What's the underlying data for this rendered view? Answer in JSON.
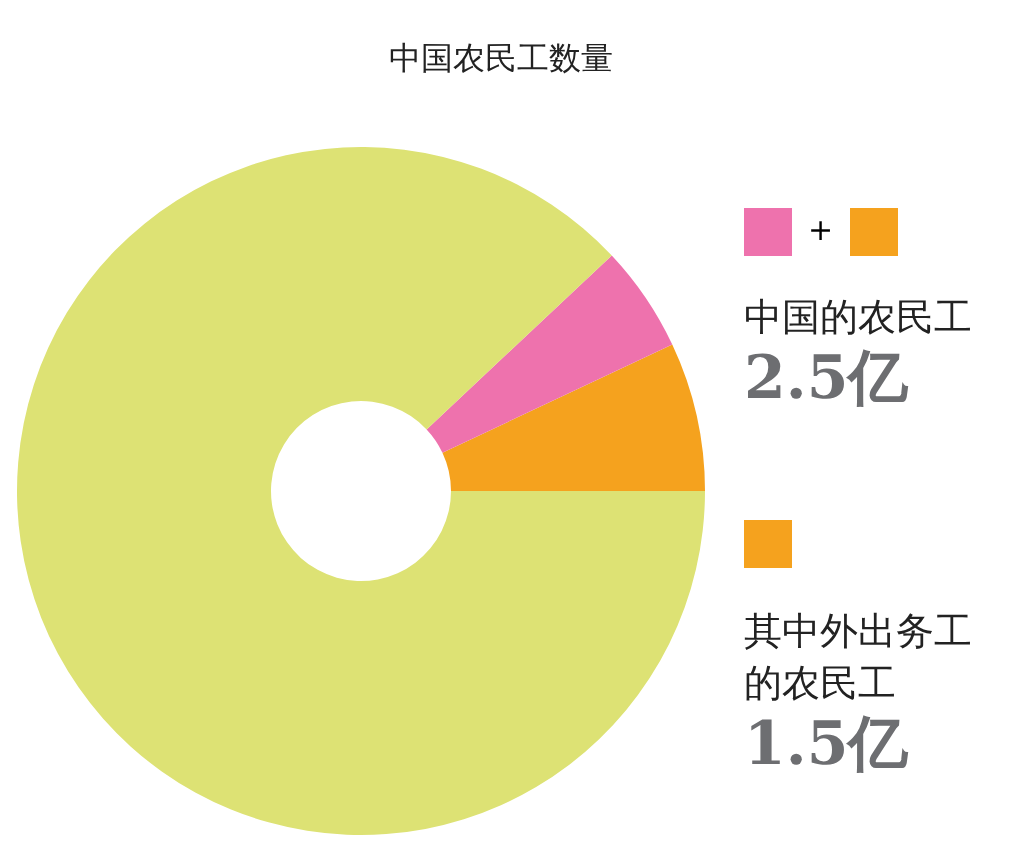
{
  "chart_data": {
    "type": "donut",
    "title": "中国农民工数量",
    "categories": [
      null,
      null,
      null
    ],
    "values": [
      7,
      5,
      88
    ],
    "colors": [
      "#f5a21e",
      "#ee72ad",
      "#dde274"
    ],
    "annotations": [
      "+",
      "中国的农民工",
      "2.5亿",
      "其中外出务工",
      "的农民工",
      "1.5亿"
    ]
  }
}
